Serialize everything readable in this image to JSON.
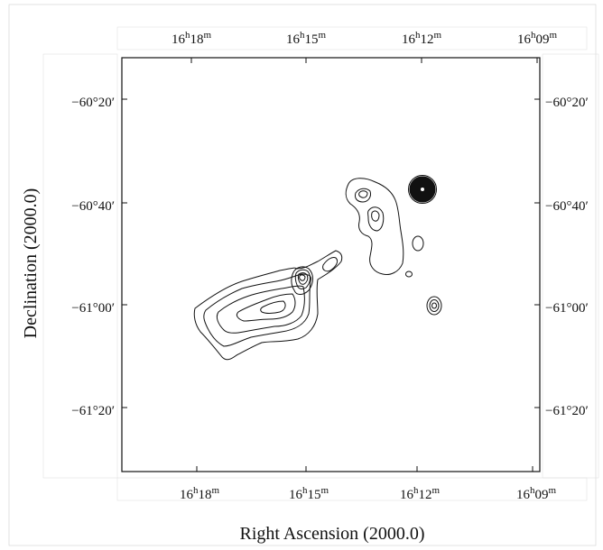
{
  "chart_data": {
    "type": "contour",
    "title": "",
    "xlabel": "Right Ascension (2000.0)",
    "ylabel": "Declination (2000.0)",
    "x_ticks": [
      {
        "label_main": "16",
        "h": "h",
        "min": "18",
        "m": "m",
        "ra_min": 978
      },
      {
        "label_main": "16",
        "h": "h",
        "min": "15",
        "m": "m",
        "ra_min": 975
      },
      {
        "label_main": "16",
        "h": "h",
        "min": "12",
        "m": "m",
        "ra_min": 972
      },
      {
        "label_main": "16",
        "h": "h",
        "min": "09",
        "m": "m",
        "ra_min": 969
      }
    ],
    "y_ticks": [
      {
        "label": "−60°20′",
        "dec": -60.333
      },
      {
        "label": "−60°40′",
        "dec": -60.667
      },
      {
        "label": "−61°00′",
        "dec": -61.0
      },
      {
        "label": "−61°20′",
        "dec": -61.333
      }
    ],
    "xlim_ra_min": [
      979.9,
      968.6
    ],
    "ylim_dec": [
      -60.15,
      -61.55
    ],
    "grid": false,
    "sources": [
      {
        "name": "extended-nebula",
        "ra_min": 975.9,
        "dec": -60.98
      },
      {
        "name": "bright-point-source",
        "ra_min": 972.0,
        "dec": -60.625
      },
      {
        "name": "northern-complex",
        "ra_min": 972.6,
        "dec": -60.75
      },
      {
        "name": "small-source",
        "ra_min": 971.5,
        "dec": -60.99
      }
    ]
  }
}
